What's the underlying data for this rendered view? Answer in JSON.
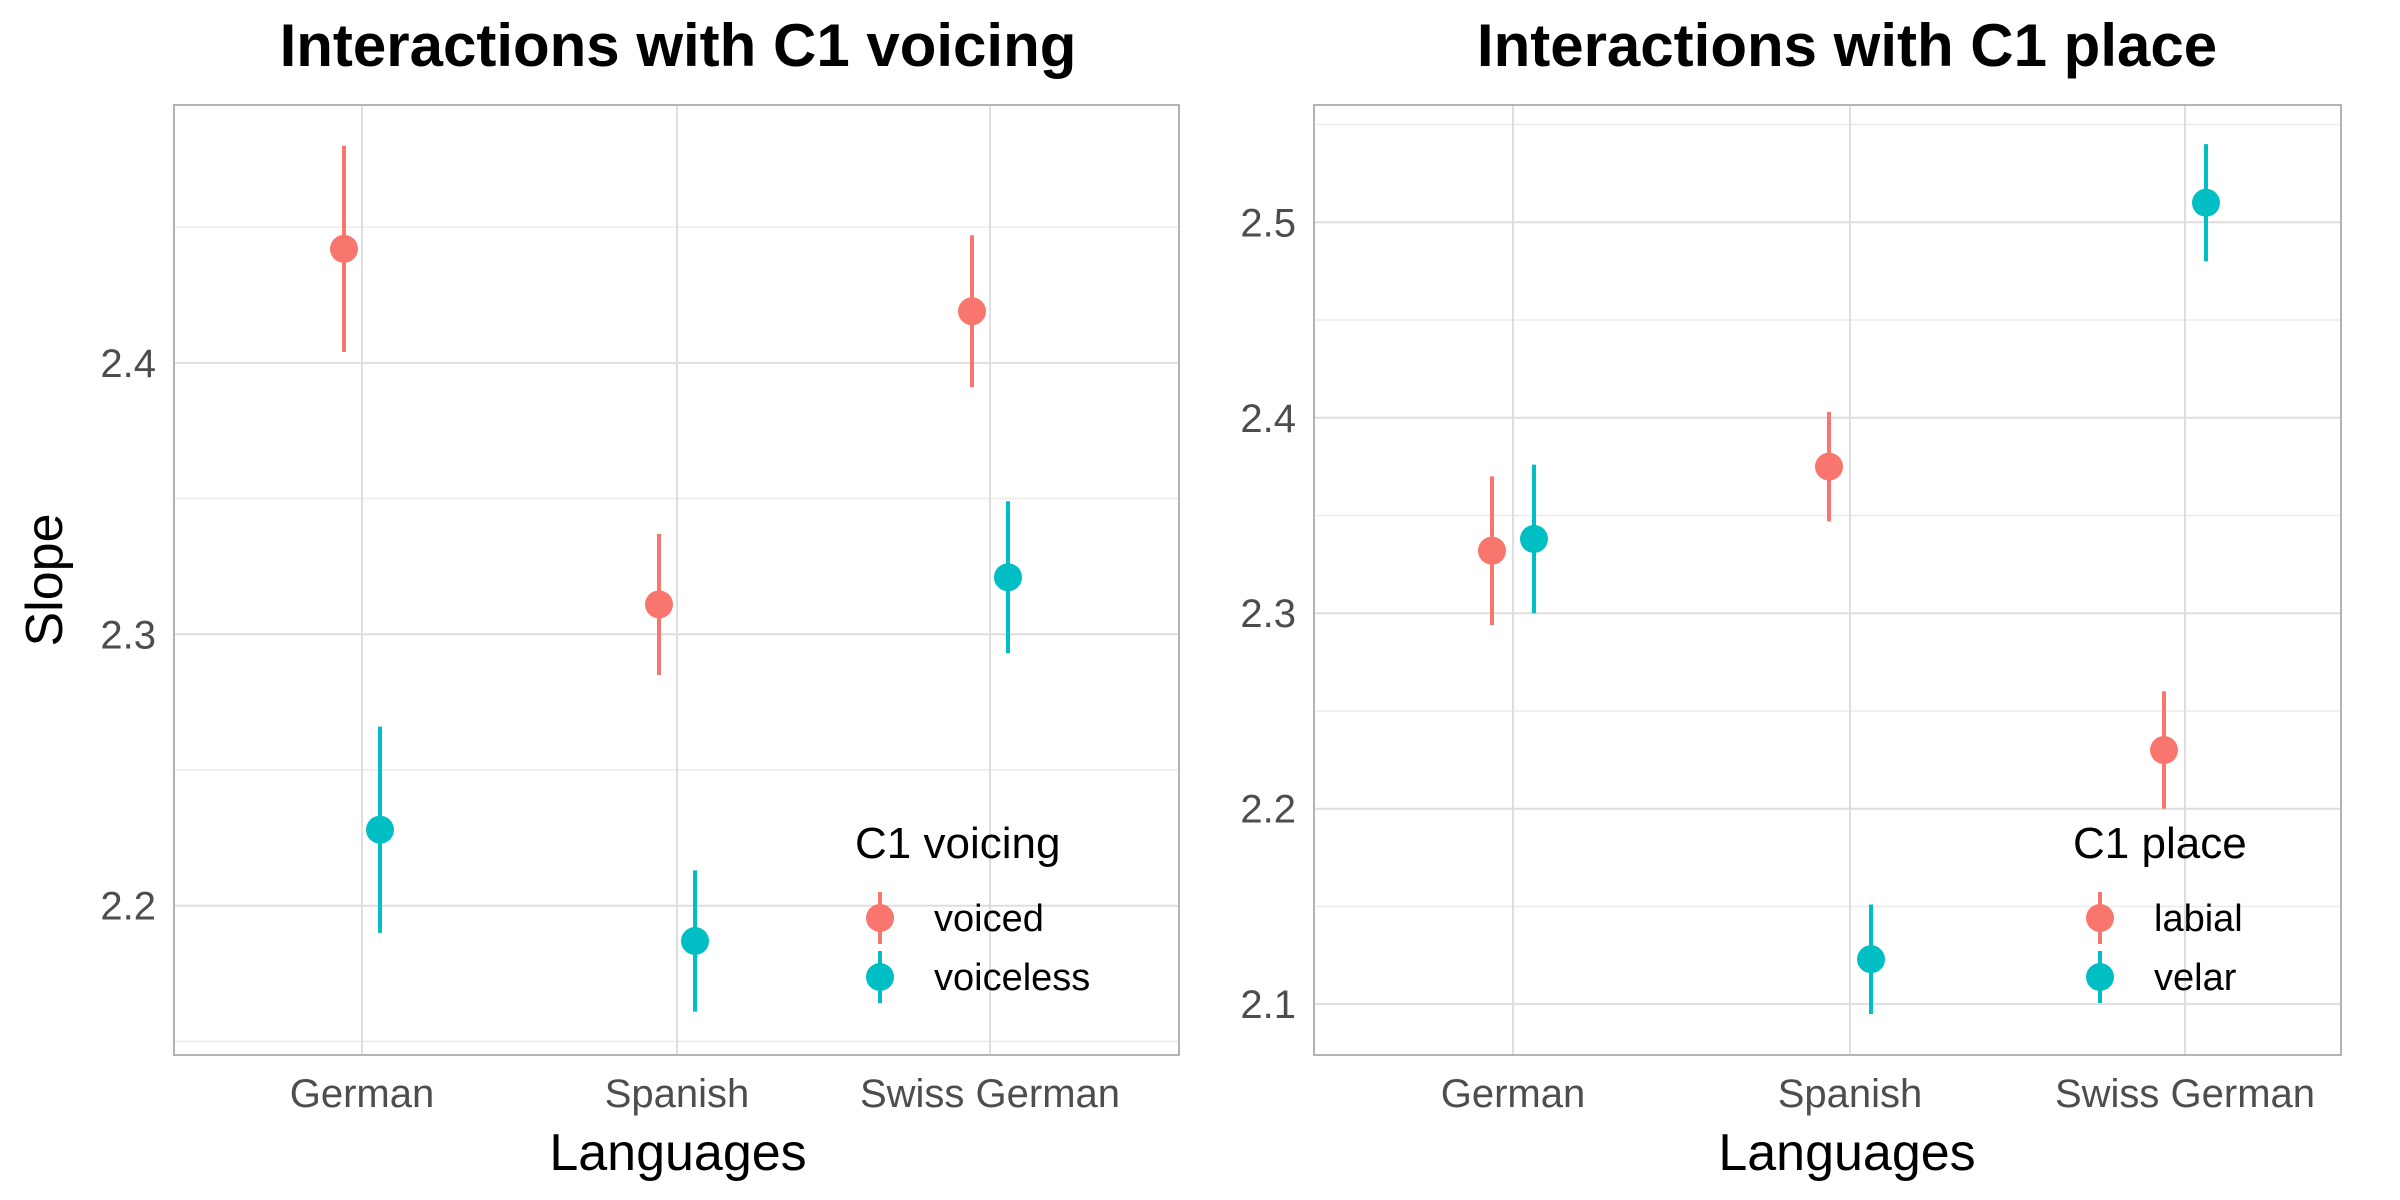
{
  "colors": {
    "series_a": "#F8766D",
    "series_b": "#00BFC4",
    "grid_major": "#dedede",
    "grid_minor": "#ececec",
    "panel_border": "#b3b3b3"
  },
  "shared": {
    "xlabel": "Languages",
    "ylabel": "Slope"
  },
  "chart_data": [
    {
      "type": "scatter",
      "title": "Interactions with C1 voicing",
      "xlabel": "Languages",
      "ylabel": "Slope",
      "categories": [
        "German",
        "Spanish",
        "Swiss German"
      ],
      "ylim": [
        2.145,
        2.495
      ],
      "yticks": [
        "2.2",
        "2.3",
        "2.4"
      ],
      "grid": true,
      "legend": {
        "title": "C1 voicing",
        "position": "bottom-right"
      },
      "series": [
        {
          "name": "voiced",
          "values": [
            2.442,
            2.311,
            2.419
          ],
          "lower": [
            2.404,
            2.285,
            2.391
          ],
          "upper": [
            2.48,
            2.337,
            2.447
          ]
        },
        {
          "name": "voiceless",
          "values": [
            2.228,
            2.187,
            2.321
          ],
          "lower": [
            2.19,
            2.161,
            2.293
          ],
          "upper": [
            2.266,
            2.213,
            2.349
          ]
        }
      ]
    },
    {
      "type": "scatter",
      "title": "Interactions with C1 place",
      "xlabel": "Languages",
      "ylabel": "",
      "categories": [
        "German",
        "Spanish",
        "Swiss German"
      ],
      "ylim": [
        2.074,
        2.56
      ],
      "yticks": [
        "2.1",
        "2.2",
        "2.3",
        "2.4",
        "2.5"
      ],
      "grid": true,
      "legend": {
        "title": "C1 place",
        "position": "bottom-right"
      },
      "series": [
        {
          "name": "labial",
          "values": [
            2.332,
            2.375,
            2.23
          ],
          "lower": [
            2.294,
            2.347,
            2.2
          ],
          "upper": [
            2.37,
            2.403,
            2.26
          ]
        },
        {
          "name": "velar",
          "values": [
            2.338,
            2.123,
            2.51
          ],
          "lower": [
            2.3,
            2.095,
            2.48
          ],
          "upper": [
            2.376,
            2.151,
            2.54
          ]
        }
      ]
    }
  ]
}
